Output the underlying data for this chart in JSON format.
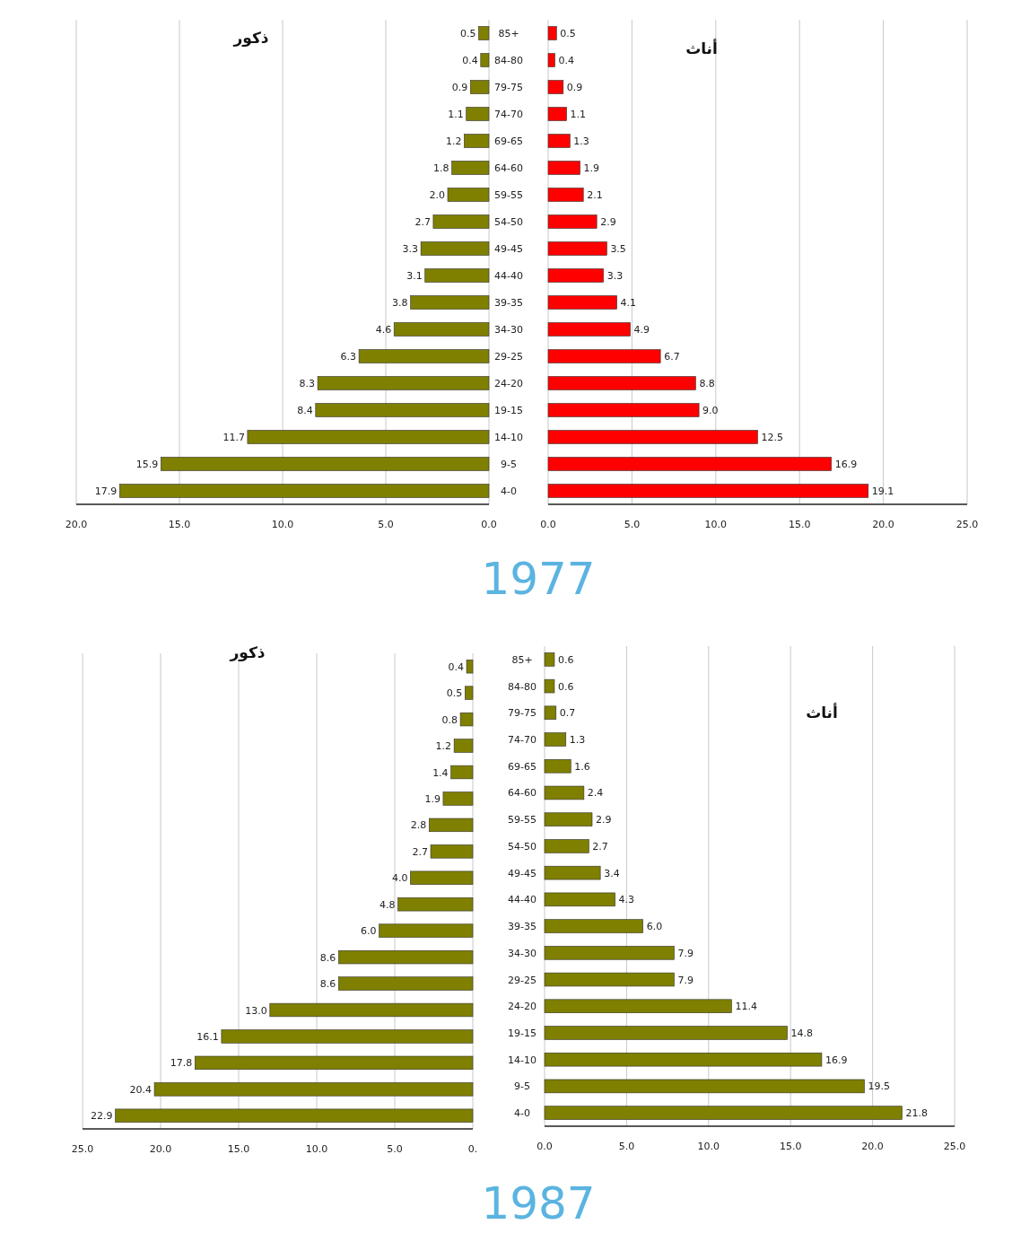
{
  "chart_data": [
    {
      "type": "bar",
      "orientation": "horizontal",
      "title": "1977",
      "categories": [
        "85+",
        "84-80",
        "79-75",
        "74-70",
        "69-65",
        "64-60",
        "59-55",
        "54-50",
        "49-45",
        "44-40",
        "39-35",
        "34-30",
        "29-25",
        "24-20",
        "19-15",
        "14-10",
        "9-5",
        "4-0"
      ],
      "series": [
        {
          "name": "ذكور",
          "color": "#7f7f00",
          "values": [
            0.5,
            0.4,
            0.9,
            1.1,
            1.2,
            1.8,
            2.0,
            2.7,
            3.3,
            3.1,
            3.8,
            4.6,
            6.3,
            8.3,
            8.4,
            11.7,
            15.9,
            17.9
          ],
          "value_labels": [
            "0.5",
            "0.4",
            "0.9",
            "1.1",
            "1.2",
            "1.8",
            "2.0",
            "2.7",
            "3.3",
            "3.1",
            "3.8",
            "4.6",
            "6.3",
            "8.3",
            "8.4",
            "11.7",
            "15.9",
            "17.9"
          ]
        }
      ],
      "xlim": [
        20,
        0
      ],
      "xticks": [
        {
          "value": 20,
          "label": "20.0"
        },
        {
          "value": 15,
          "label": "15.0"
        },
        {
          "value": 10,
          "label": "10.0"
        },
        {
          "value": 5,
          "label": "5.0"
        },
        {
          "value": 0,
          "label": "0.0"
        }
      ],
      "grid": "x"
    },
    {
      "type": "bar",
      "orientation": "horizontal",
      "categories": [
        null,
        null,
        null,
        null,
        null,
        null,
        null,
        null,
        null,
        null,
        null,
        null,
        null,
        null,
        null,
        null,
        null,
        null
      ],
      "series": [
        {
          "name": "أناث",
          "color": "#ff0000",
          "values": [
            0.5,
            0.4,
            0.9,
            1.1,
            1.3,
            1.9,
            2.1,
            2.9,
            3.5,
            3.3,
            4.1,
            4.9,
            6.7,
            8.8,
            9.0,
            12.5,
            16.9,
            19.1
          ],
          "value_labels": [
            "0.5",
            "0.4",
            "0.9",
            "1.1",
            "1.3",
            "1.9",
            "2.1",
            "2.9",
            "3.5",
            "3.3",
            "4.1",
            "4.9",
            "6.7",
            "8.8",
            "9.0",
            "12.5",
            "16.9",
            "19.1"
          ]
        }
      ],
      "xlim": [
        0,
        25
      ],
      "xticks": [
        {
          "value": 0,
          "label": "0.0"
        },
        {
          "value": 5,
          "label": "5.0"
        },
        {
          "value": 10,
          "label": "10.0"
        },
        {
          "value": 15,
          "label": "15.0"
        },
        {
          "value": 20,
          "label": "20.0"
        },
        {
          "value": 25,
          "label": "25.0"
        }
      ],
      "grid": "x",
      "tick_labels": "x"
    },
    {
      "type": "bar",
      "orientation": "horizontal",
      "title": "1987",
      "categories": [
        null,
        null,
        null,
        null,
        null,
        null,
        null,
        null,
        null,
        null,
        null,
        null,
        null,
        null,
        null,
        null,
        null,
        null
      ],
      "series": [
        {
          "name": "ذكور",
          "color": "#7f7f00",
          "values": [
            0.4,
            0.5,
            0.8,
            1.2,
            1.4,
            1.9,
            2.8,
            2.7,
            4.0,
            4.8,
            6.0,
            8.6,
            8.6,
            13.0,
            16.1,
            17.8,
            20.4,
            22.9
          ],
          "value_labels": [
            "0.4",
            "0.5",
            "0.8",
            "1.2",
            "1.4",
            "1.9",
            "2.8",
            "2.7",
            "4.0",
            "4.8",
            "6.0",
            "8.6",
            "8.6",
            "13.0",
            "16.1",
            "17.8",
            "20.4",
            "22.9"
          ]
        }
      ],
      "xlim": [
        25,
        0
      ],
      "xticks": [
        {
          "value": 25,
          "label": "25.0"
        },
        {
          "value": 20,
          "label": "20.0"
        },
        {
          "value": 15,
          "label": "15.0"
        },
        {
          "value": 10,
          "label": "10.0"
        },
        {
          "value": 5,
          "label": "5.0"
        },
        {
          "value": 0,
          "label": "0."
        }
      ],
      "grid": "x",
      "tick_labels": "x"
    },
    {
      "type": "bar",
      "orientation": "horizontal",
      "categories": [
        "85+",
        "84-80",
        "79-75",
        "74-70",
        "69-65",
        "64-60",
        "59-55",
        "54-50",
        "49-45",
        "44-40",
        "39-35",
        "34-30",
        "29-25",
        "24-20",
        "19-15",
        "14-10",
        "9-5",
        "4-0"
      ],
      "series": [
        {
          "name": "أناث",
          "color": "#7f7f00",
          "values": [
            0.6,
            0.6,
            0.7,
            1.3,
            1.6,
            2.4,
            2.9,
            2.7,
            3.4,
            4.3,
            6.0,
            7.9,
            7.9,
            11.4,
            14.8,
            16.9,
            19.5,
            21.8
          ],
          "value_labels": [
            "0.6",
            "0.6",
            "0.7",
            "1.3",
            "1.6",
            "2.4",
            "2.9",
            "2.7",
            "3.4",
            "4.3",
            "6.0",
            "7.9",
            "7.9",
            "11.4",
            "14.8",
            "16.9",
            "19.5",
            "21.8"
          ]
        }
      ],
      "xlim": [
        0,
        25
      ],
      "xticks": [
        {
          "value": 0,
          "label": "0.0"
        },
        {
          "value": 5,
          "label": "5.0"
        },
        {
          "value": 10,
          "label": "10.0"
        },
        {
          "value": 15,
          "label": "15.0"
        },
        {
          "value": 20,
          "label": "20.0"
        },
        {
          "value": 25,
          "label": "25.0"
        }
      ],
      "grid": "x"
    }
  ]
}
